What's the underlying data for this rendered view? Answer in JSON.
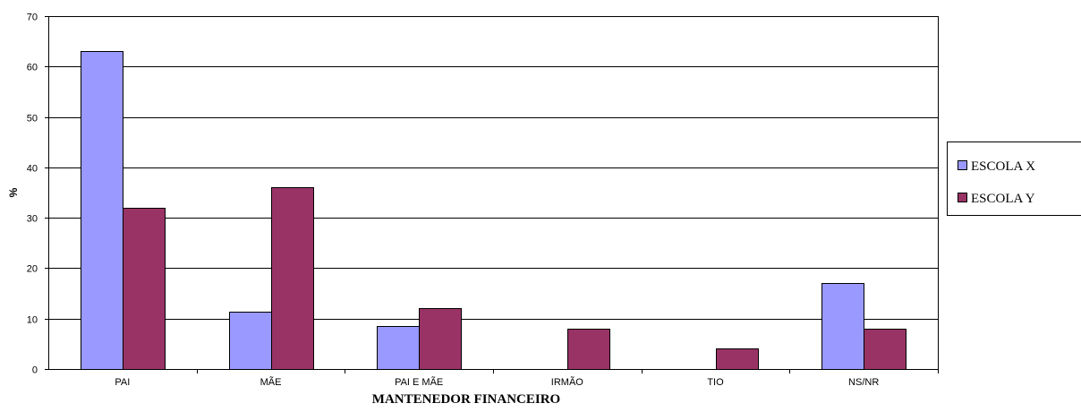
{
  "chart_data": {
    "type": "bar",
    "title": "",
    "xlabel": "MANTENEDOR FINANCEIRO",
    "ylabel": "%",
    "ylim": [
      0,
      70
    ],
    "yticks": [
      0,
      10,
      20,
      30,
      40,
      50,
      60,
      70
    ],
    "grid": true,
    "legend_position": "right",
    "categories": [
      "PAI",
      "MÃE",
      "PAI E MÃE",
      "IRMÃO",
      "TIO",
      "NS/NR"
    ],
    "series": [
      {
        "name": "ESCOLA X",
        "color": "#9999ff",
        "values": [
          63,
          11.4,
          8.6,
          0,
          0,
          17.1
        ]
      },
      {
        "name": "ESCOLA Y",
        "color": "#993366",
        "values": [
          32,
          36,
          12,
          8,
          4,
          8
        ]
      }
    ]
  }
}
